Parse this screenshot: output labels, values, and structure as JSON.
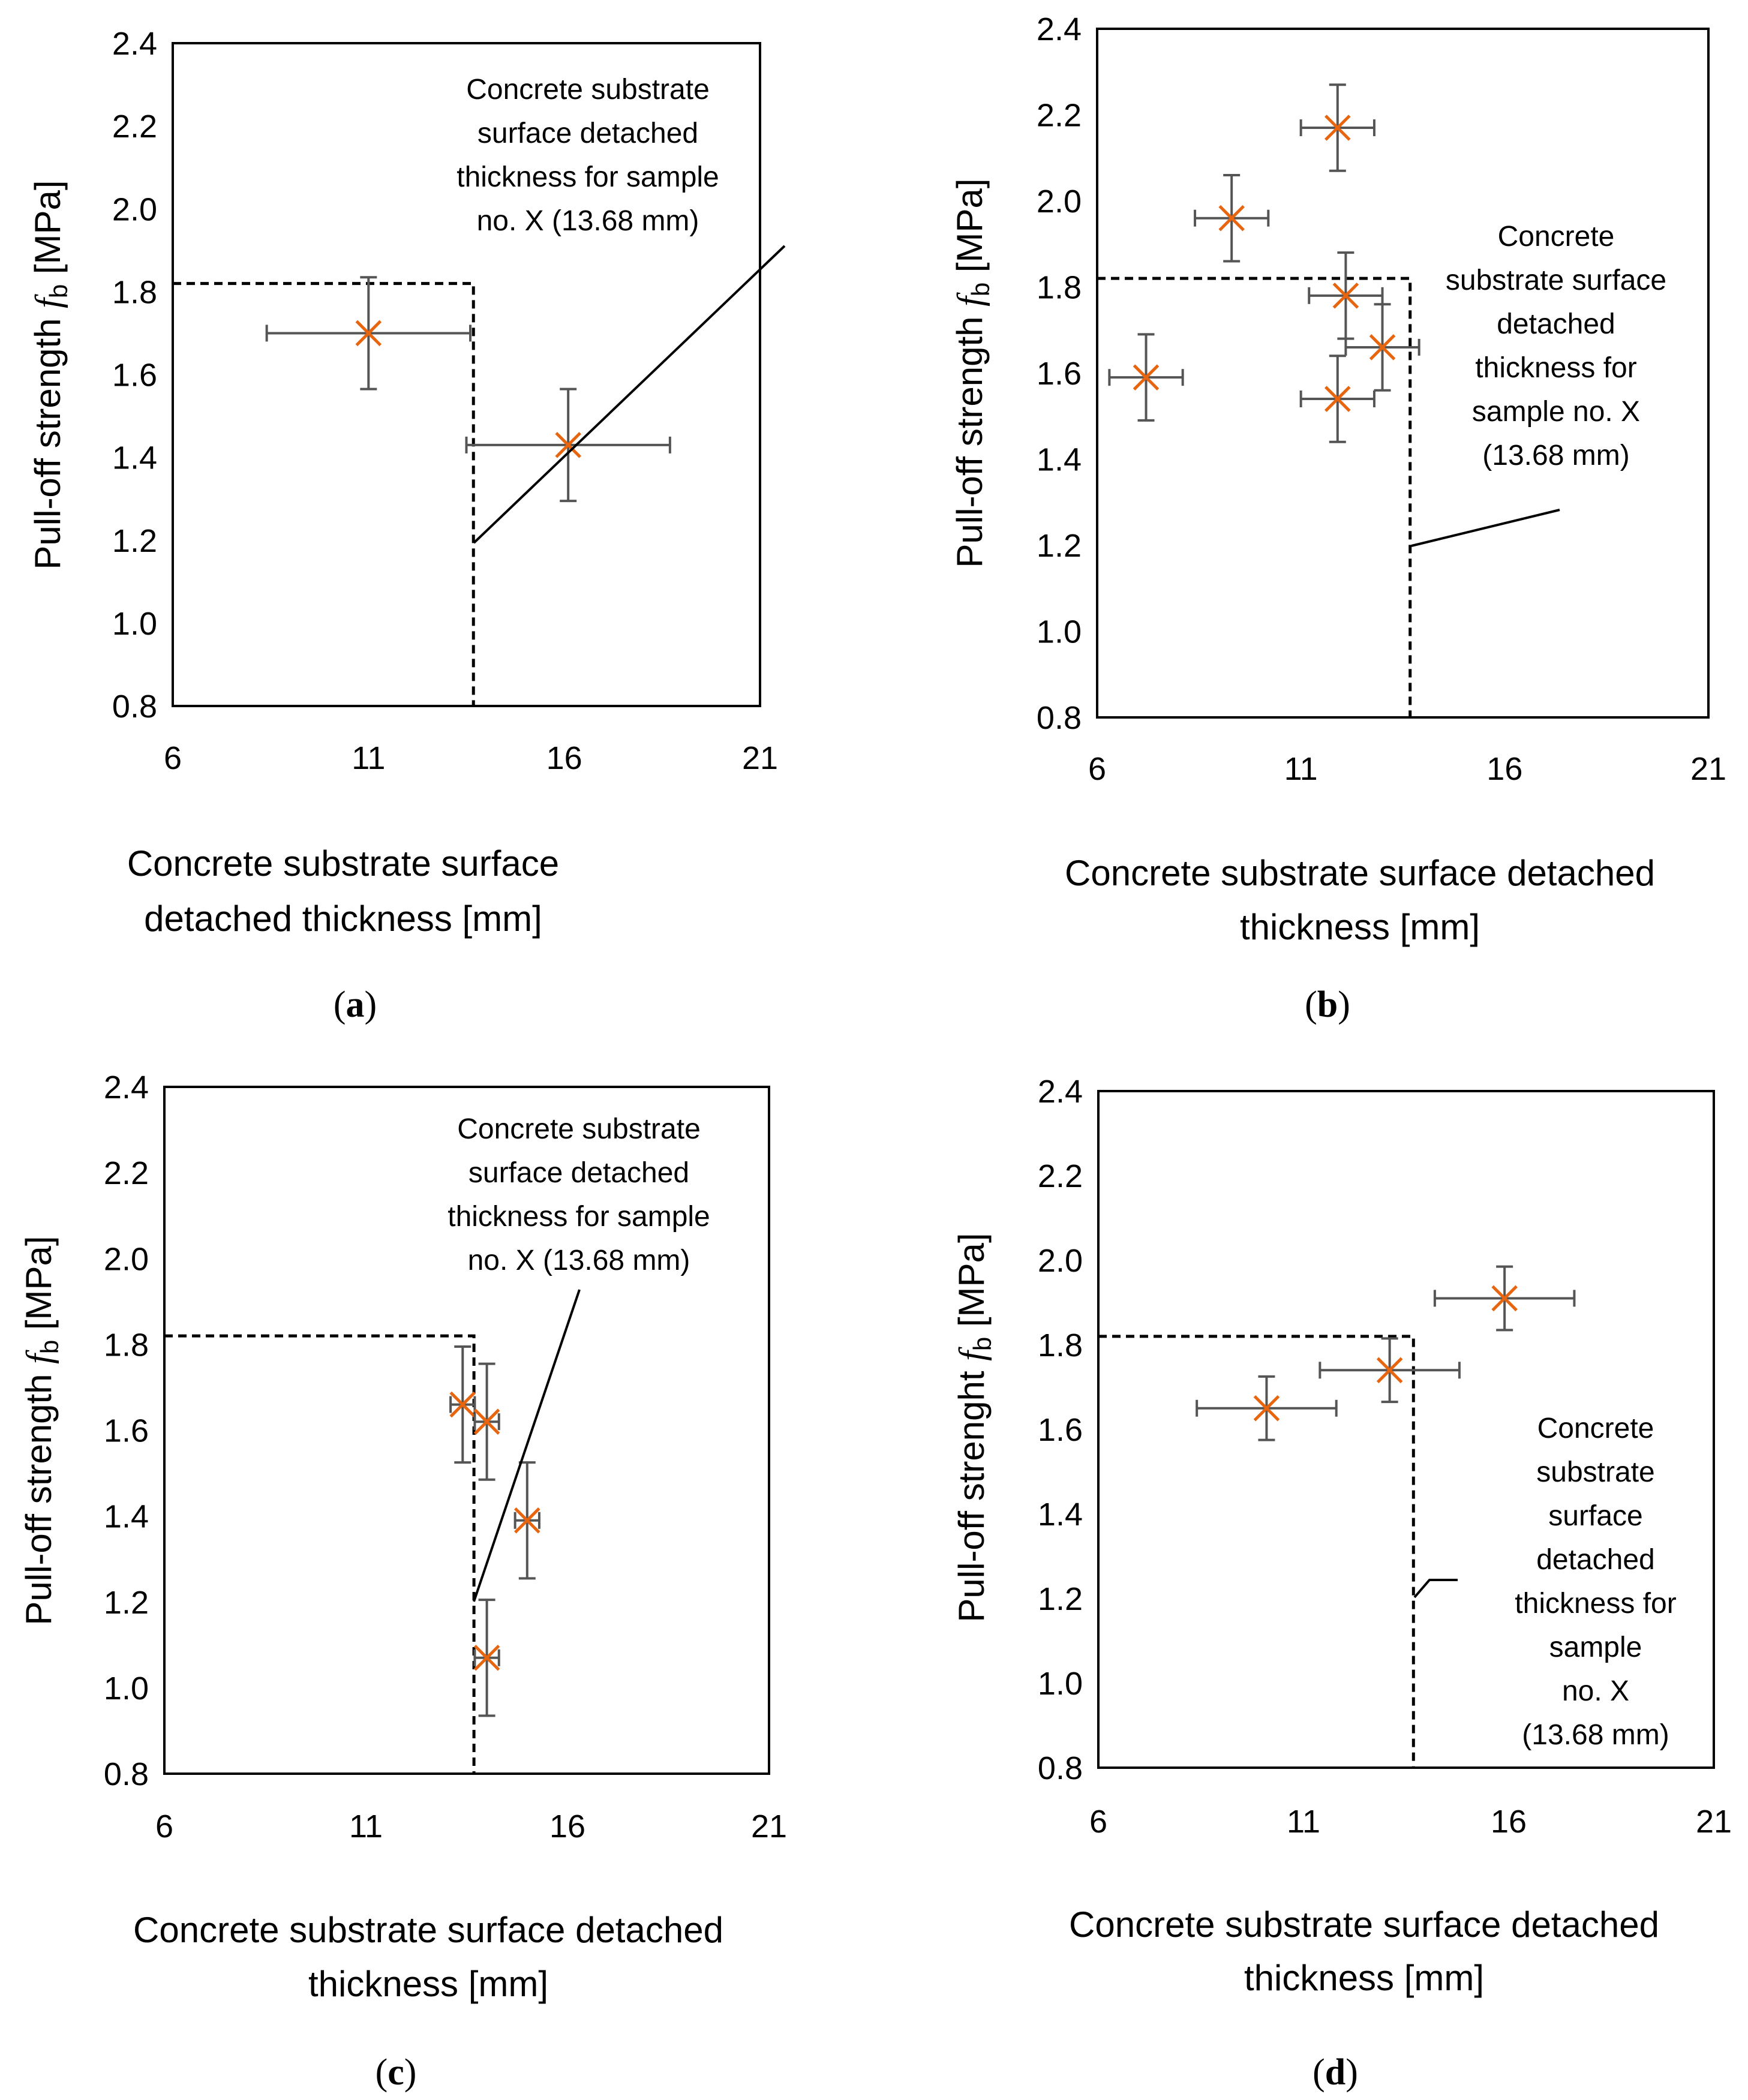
{
  "chart_data": [
    {
      "id": "a",
      "type": "scatter",
      "panel_label": "a",
      "ylabel_main": "Pull-off strength ",
      "ylabel_symbol": "f",
      "ylabel_sub": "b",
      "ylabel_unit": "  [MPa]",
      "xlabel_lines": [
        "Concrete substrate surface",
        "detached thickness [mm]"
      ],
      "xlim": [
        6,
        21
      ],
      "ylim": [
        0.8,
        2.4
      ],
      "xticks": [
        "6",
        "11",
        "16",
        "21"
      ],
      "yticks": [
        "0.8",
        "1.0",
        "1.2",
        "1.4",
        "1.6",
        "1.8",
        "2.0",
        "2.2",
        "2.4"
      ],
      "points": [
        {
          "x": 11.0,
          "y": 1.7,
          "xerr": 2.6,
          "yerr": 0.135
        },
        {
          "x": 16.1,
          "y": 1.43,
          "xerr": 2.6,
          "yerr": 0.135
        }
      ],
      "threshold": {
        "x": 13.68,
        "y": 1.82
      },
      "annotation_lines": [
        "Concrete substrate",
        "surface detached",
        "thickness for sample",
        "no. X (13.68 mm)"
      ]
    },
    {
      "id": "b",
      "type": "scatter",
      "panel_label": "b",
      "ylabel_main": "Pull-off strength ",
      "ylabel_symbol": "f",
      "ylabel_sub": "b",
      "ylabel_unit": "  [MPa]",
      "xlabel_lines": [
        "Concrete substrate surface detached",
        "thickness [mm]"
      ],
      "xlim": [
        6,
        21
      ],
      "ylim": [
        0.8,
        2.4
      ],
      "xticks": [
        "6",
        "11",
        "16",
        "21"
      ],
      "yticks": [
        "0.8",
        "1.0",
        "1.2",
        "1.4",
        "1.6",
        "1.8",
        "2.0",
        "2.2",
        "2.4"
      ],
      "points": [
        {
          "x": 7.2,
          "y": 1.59,
          "xerr": 0.9,
          "yerr": 0.1
        },
        {
          "x": 9.3,
          "y": 1.96,
          "xerr": 0.9,
          "yerr": 0.1
        },
        {
          "x": 11.9,
          "y": 2.17,
          "xerr": 0.9,
          "yerr": 0.1
        },
        {
          "x": 12.1,
          "y": 1.78,
          "xerr": 0.9,
          "yerr": 0.1
        },
        {
          "x": 13.0,
          "y": 1.66,
          "xerr": 0.9,
          "yerr": 0.1
        },
        {
          "x": 11.9,
          "y": 1.54,
          "xerr": 0.9,
          "yerr": 0.1
        }
      ],
      "threshold": {
        "x": 13.68,
        "y": 1.82
      },
      "annotation_lines": [
        "Concrete",
        "substrate surface",
        "detached",
        "thickness for",
        "sample no. X",
        "(13.68 mm)"
      ]
    },
    {
      "id": "c",
      "type": "scatter",
      "panel_label": "c",
      "ylabel_main": "Pull-off strength ",
      "ylabel_symbol": "f",
      "ylabel_sub": "b",
      "ylabel_unit": "  [MPa]",
      "xlabel_lines": [
        "Concrete substrate surface detached",
        "thickness [mm]"
      ],
      "xlim": [
        6,
        21
      ],
      "ylim": [
        0.8,
        2.4
      ],
      "xticks": [
        "6",
        "11",
        "16",
        "21"
      ],
      "yticks": [
        "0.8",
        "1.0",
        "1.2",
        "1.4",
        "1.6",
        "1.8",
        "2.0",
        "2.2",
        "2.4"
      ],
      "points": [
        {
          "x": 13.4,
          "y": 1.66,
          "xerr": 0.3,
          "yerr": 0.135
        },
        {
          "x": 14.0,
          "y": 1.62,
          "xerr": 0.3,
          "yerr": 0.135
        },
        {
          "x": 15.0,
          "y": 1.39,
          "xerr": 0.3,
          "yerr": 0.135
        },
        {
          "x": 14.0,
          "y": 1.07,
          "xerr": 0.3,
          "yerr": 0.135
        }
      ],
      "threshold": {
        "x": 13.68,
        "y": 1.82
      },
      "annotation_lines": [
        "Concrete substrate",
        "surface detached",
        "thickness for sample",
        "no. X (13.68 mm)"
      ]
    },
    {
      "id": "d",
      "type": "scatter",
      "panel_label": "d",
      "ylabel_main": "Pull-off strenght ",
      "ylabel_symbol": "f",
      "ylabel_sub": "b",
      "ylabel_unit": "  [MPa]",
      "xlabel_lines": [
        "Concrete substrate surface detached",
        "thickness [mm]"
      ],
      "xlim": [
        6,
        21
      ],
      "ylim": [
        0.8,
        2.4
      ],
      "xticks": [
        "6",
        "11",
        "16",
        "21"
      ],
      "yticks": [
        "0.8",
        "1.0",
        "1.2",
        "1.4",
        "1.6",
        "1.8",
        "2.0",
        "2.2",
        "2.4"
      ],
      "points": [
        {
          "x": 10.1,
          "y": 1.65,
          "xerr": 1.7,
          "yerr": 0.075
        },
        {
          "x": 13.1,
          "y": 1.74,
          "xerr": 1.7,
          "yerr": 0.075
        },
        {
          "x": 15.9,
          "y": 1.91,
          "xerr": 1.7,
          "yerr": 0.075
        }
      ],
      "threshold": {
        "x": 13.68,
        "y": 1.82
      },
      "annotation_lines": [
        "Concrete",
        "substrate",
        "surface",
        "detached",
        "thickness for",
        "sample",
        "no. X",
        "(13.68 mm)"
      ]
    }
  ]
}
